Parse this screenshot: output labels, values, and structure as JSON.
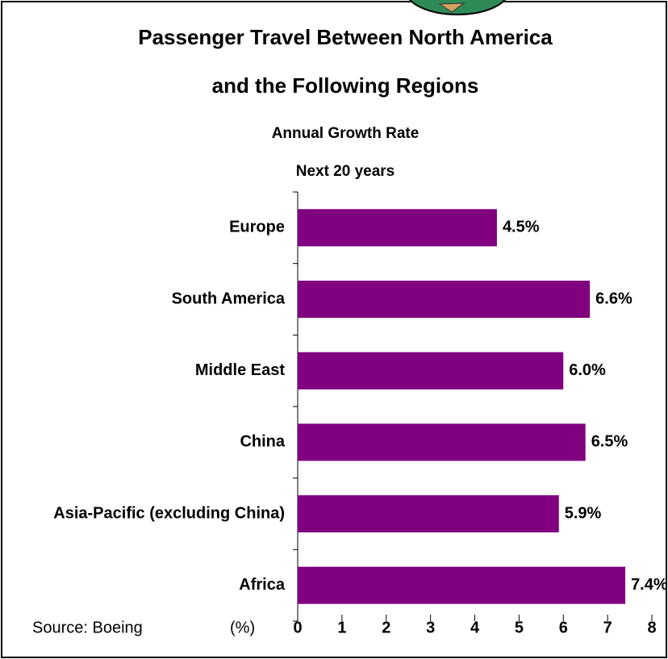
{
  "chart_data": {
    "type": "bar",
    "orientation": "horizontal",
    "title": [
      "Passenger Travel Between North America",
      "and the Following Regions"
    ],
    "subtitle": [
      "Annual Growth Rate",
      "Next 20 years"
    ],
    "categories": [
      "Europe",
      "South America",
      "Middle East",
      "China",
      "Asia-Pacific (excluding China)",
      "Africa"
    ],
    "values": [
      4.5,
      6.6,
      6.0,
      6.5,
      5.9,
      7.4
    ],
    "value_labels": [
      "4.5%",
      "6.6%",
      "6.0%",
      "6.5%",
      "5.9%",
      "7.4%"
    ],
    "color": "#800080",
    "xlim": [
      0,
      8
    ],
    "xticks": [
      0,
      1,
      2,
      3,
      4,
      5,
      6,
      7,
      8
    ],
    "xlabel": "(%)",
    "source": "Source: Boeing"
  }
}
